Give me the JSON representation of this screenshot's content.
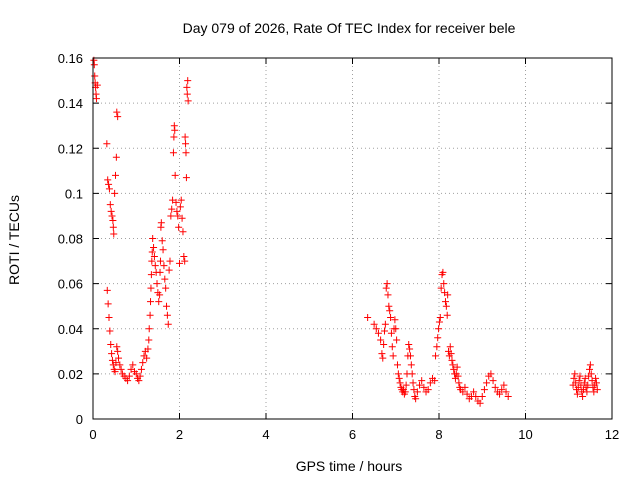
{
  "chart_data": {
    "type": "scatter",
    "title": "Day 079 of 2026, Rate Of TEC Index for receiver bele",
    "xlabel": "GPS time / hours",
    "ylabel": "ROTI / TECUs",
    "xlim": [
      0,
      12
    ],
    "ylim": [
      0,
      0.16
    ],
    "xticks": [
      0,
      2,
      4,
      6,
      8,
      10,
      12
    ],
    "xtick_labels": [
      "0",
      "2",
      "4",
      "6",
      "8",
      "10",
      "12"
    ],
    "yticks": [
      0,
      0.02,
      0.04,
      0.06,
      0.08,
      0.1,
      0.12,
      0.14,
      0.16
    ],
    "ytick_labels": [
      "0",
      "0.02",
      "0.04",
      "0.06",
      "0.08",
      "0.1",
      "0.12",
      "0.14",
      "0.16"
    ],
    "grid": true,
    "marker": "plus",
    "color": "#ff0000",
    "points": [
      [
        0.02,
        0.159
      ],
      [
        0.03,
        0.157
      ],
      [
        0.04,
        0.152
      ],
      [
        0.05,
        0.149
      ],
      [
        0.06,
        0.147
      ],
      [
        0.07,
        0.144
      ],
      [
        0.08,
        0.142
      ],
      [
        0.1,
        0.148
      ],
      [
        0.32,
        0.122
      ],
      [
        0.34,
        0.106
      ],
      [
        0.36,
        0.104
      ],
      [
        0.38,
        0.102
      ],
      [
        0.4,
        0.095
      ],
      [
        0.42,
        0.092
      ],
      [
        0.44,
        0.09
      ],
      [
        0.46,
        0.088
      ],
      [
        0.47,
        0.085
      ],
      [
        0.48,
        0.082
      ],
      [
        0.5,
        0.1
      ],
      [
        0.52,
        0.108
      ],
      [
        0.54,
        0.116
      ],
      [
        0.55,
        0.136
      ],
      [
        0.57,
        0.134
      ],
      [
        0.33,
        0.057
      ],
      [
        0.35,
        0.051
      ],
      [
        0.37,
        0.045
      ],
      [
        0.39,
        0.039
      ],
      [
        0.41,
        0.033
      ],
      [
        0.43,
        0.029
      ],
      [
        0.45,
        0.026
      ],
      [
        0.47,
        0.024
      ],
      [
        0.49,
        0.022
      ],
      [
        0.51,
        0.021
      ],
      [
        0.53,
        0.025
      ],
      [
        0.55,
        0.032
      ],
      [
        0.57,
        0.03
      ],
      [
        0.59,
        0.027
      ],
      [
        0.62,
        0.024
      ],
      [
        0.65,
        0.022
      ],
      [
        0.68,
        0.02
      ],
      [
        0.72,
        0.019
      ],
      [
        0.76,
        0.018
      ],
      [
        0.8,
        0.017
      ],
      [
        0.84,
        0.019
      ],
      [
        0.88,
        0.022
      ],
      [
        0.92,
        0.024
      ],
      [
        0.96,
        0.021
      ],
      [
        1.0,
        0.02
      ],
      [
        1.03,
        0.018
      ],
      [
        1.06,
        0.017
      ],
      [
        1.09,
        0.019
      ],
      [
        1.12,
        0.022
      ],
      [
        1.15,
        0.025
      ],
      [
        1.18,
        0.028
      ],
      [
        1.21,
        0.03
      ],
      [
        1.24,
        0.027
      ],
      [
        1.27,
        0.031
      ],
      [
        1.29,
        0.035
      ],
      [
        1.3,
        0.04
      ],
      [
        1.32,
        0.046
      ],
      [
        1.33,
        0.052
      ],
      [
        1.34,
        0.058
      ],
      [
        1.35,
        0.064
      ],
      [
        1.36,
        0.07
      ],
      [
        1.37,
        0.074
      ],
      [
        1.38,
        0.08
      ],
      [
        1.4,
        0.076
      ],
      [
        1.42,
        0.072
      ],
      [
        1.44,
        0.068
      ],
      [
        1.46,
        0.065
      ],
      [
        1.48,
        0.06
      ],
      [
        1.5,
        0.056
      ],
      [
        1.52,
        0.052
      ],
      [
        1.54,
        0.055
      ],
      [
        1.55,
        0.065
      ],
      [
        1.56,
        0.07
      ],
      [
        1.57,
        0.085
      ],
      [
        1.58,
        0.087
      ],
      [
        1.6,
        0.079
      ],
      [
        1.62,
        0.075
      ],
      [
        1.64,
        0.068
      ],
      [
        1.66,
        0.062
      ],
      [
        1.68,
        0.058
      ],
      [
        1.7,
        0.05
      ],
      [
        1.72,
        0.046
      ],
      [
        1.74,
        0.042
      ],
      [
        1.76,
        0.066
      ],
      [
        1.78,
        0.07
      ],
      [
        1.8,
        0.09
      ],
      [
        1.82,
        0.093
      ],
      [
        1.84,
        0.097
      ],
      [
        1.86,
        0.118
      ],
      [
        1.87,
        0.125
      ],
      [
        1.88,
        0.13
      ],
      [
        1.89,
        0.128
      ],
      [
        1.9,
        0.108
      ],
      [
        1.92,
        0.096
      ],
      [
        1.94,
        0.092
      ],
      [
        1.96,
        0.09
      ],
      [
        1.98,
        0.085
      ],
      [
        2.0,
        0.069
      ],
      [
        2.02,
        0.094
      ],
      [
        2.04,
        0.097
      ],
      [
        2.06,
        0.089
      ],
      [
        2.08,
        0.083
      ],
      [
        2.1,
        0.072
      ],
      [
        2.12,
        0.07
      ],
      [
        2.13,
        0.125
      ],
      [
        2.14,
        0.122
      ],
      [
        2.15,
        0.118
      ],
      [
        2.16,
        0.107
      ],
      [
        2.17,
        0.147
      ],
      [
        2.18,
        0.144
      ],
      [
        2.19,
        0.15
      ],
      [
        2.2,
        0.141
      ],
      [
        6.35,
        0.045
      ],
      [
        6.5,
        0.042
      ],
      [
        6.55,
        0.04
      ],
      [
        6.6,
        0.038
      ],
      [
        6.65,
        0.035
      ],
      [
        6.68,
        0.029
      ],
      [
        6.7,
        0.027
      ],
      [
        6.72,
        0.033
      ],
      [
        6.74,
        0.039
      ],
      [
        6.76,
        0.042
      ],
      [
        6.78,
        0.058
      ],
      [
        6.8,
        0.06
      ],
      [
        6.82,
        0.055
      ],
      [
        6.84,
        0.05
      ],
      [
        6.86,
        0.048
      ],
      [
        6.88,
        0.045
      ],
      [
        6.9,
        0.038
      ],
      [
        6.92,
        0.032
      ],
      [
        6.94,
        0.028
      ],
      [
        6.96,
        0.04
      ],
      [
        6.98,
        0.044
      ],
      [
        7.0,
        0.04
      ],
      [
        7.02,
        0.035
      ],
      [
        7.04,
        0.024
      ],
      [
        7.06,
        0.02
      ],
      [
        7.08,
        0.018
      ],
      [
        7.1,
        0.016
      ],
      [
        7.12,
        0.014
      ],
      [
        7.14,
        0.013
      ],
      [
        7.16,
        0.012
      ],
      [
        7.18,
        0.013
      ],
      [
        7.2,
        0.011
      ],
      [
        7.22,
        0.012
      ],
      [
        7.24,
        0.015
      ],
      [
        7.26,
        0.02
      ],
      [
        7.28,
        0.028
      ],
      [
        7.3,
        0.033
      ],
      [
        7.32,
        0.031
      ],
      [
        7.34,
        0.028
      ],
      [
        7.36,
        0.024
      ],
      [
        7.38,
        0.02
      ],
      [
        7.4,
        0.016
      ],
      [
        7.42,
        0.013
      ],
      [
        7.44,
        0.01
      ],
      [
        7.46,
        0.009
      ],
      [
        7.5,
        0.012
      ],
      [
        7.55,
        0.015
      ],
      [
        7.6,
        0.017
      ],
      [
        7.65,
        0.014
      ],
      [
        7.7,
        0.012
      ],
      [
        7.75,
        0.013
      ],
      [
        7.8,
        0.016
      ],
      [
        7.85,
        0.018
      ],
      [
        7.9,
        0.017
      ],
      [
        7.92,
        0.028
      ],
      [
        7.95,
        0.032
      ],
      [
        7.97,
        0.036
      ],
      [
        7.99,
        0.04
      ],
      [
        8.01,
        0.043
      ],
      [
        8.03,
        0.045
      ],
      [
        8.05,
        0.058
      ],
      [
        8.07,
        0.064
      ],
      [
        8.09,
        0.065
      ],
      [
        8.11,
        0.06
      ],
      [
        8.13,
        0.056
      ],
      [
        8.15,
        0.052
      ],
      [
        8.17,
        0.05
      ],
      [
        8.19,
        0.046
      ],
      [
        8.2,
        0.055
      ],
      [
        8.22,
        0.03
      ],
      [
        8.24,
        0.028
      ],
      [
        8.26,
        0.032
      ],
      [
        8.28,
        0.029
      ],
      [
        8.3,
        0.026
      ],
      [
        8.32,
        0.024
      ],
      [
        8.34,
        0.022
      ],
      [
        8.36,
        0.02
      ],
      [
        8.38,
        0.018
      ],
      [
        8.4,
        0.02
      ],
      [
        8.42,
        0.023
      ],
      [
        8.44,
        0.019
      ],
      [
        8.46,
        0.016
      ],
      [
        8.48,
        0.014
      ],
      [
        8.5,
        0.013
      ],
      [
        8.55,
        0.012
      ],
      [
        8.6,
        0.014
      ],
      [
        8.65,
        0.011
      ],
      [
        8.7,
        0.009
      ],
      [
        8.75,
        0.01
      ],
      [
        8.8,
        0.012
      ],
      [
        8.85,
        0.01
      ],
      [
        8.9,
        0.008
      ],
      [
        8.95,
        0.007
      ],
      [
        9.0,
        0.01
      ],
      [
        9.05,
        0.013
      ],
      [
        9.1,
        0.016
      ],
      [
        9.15,
        0.019
      ],
      [
        9.2,
        0.02
      ],
      [
        9.25,
        0.017
      ],
      [
        9.3,
        0.014
      ],
      [
        9.35,
        0.012
      ],
      [
        9.4,
        0.011
      ],
      [
        9.45,
        0.013
      ],
      [
        9.5,
        0.015
      ],
      [
        9.55,
        0.012
      ],
      [
        9.6,
        0.01
      ],
      [
        11.1,
        0.015
      ],
      [
        11.12,
        0.018
      ],
      [
        11.14,
        0.02
      ],
      [
        11.16,
        0.016
      ],
      [
        11.18,
        0.013
      ],
      [
        11.2,
        0.011
      ],
      [
        11.22,
        0.014
      ],
      [
        11.24,
        0.017
      ],
      [
        11.26,
        0.019
      ],
      [
        11.28,
        0.015
      ],
      [
        11.3,
        0.012
      ],
      [
        11.32,
        0.01
      ],
      [
        11.34,
        0.013
      ],
      [
        11.36,
        0.016
      ],
      [
        11.38,
        0.018
      ],
      [
        11.4,
        0.014
      ],
      [
        11.42,
        0.012
      ],
      [
        11.44,
        0.015
      ],
      [
        11.46,
        0.019
      ],
      [
        11.48,
        0.022
      ],
      [
        11.5,
        0.024
      ],
      [
        11.52,
        0.02
      ],
      [
        11.54,
        0.017
      ],
      [
        11.56,
        0.014
      ],
      [
        11.58,
        0.012
      ],
      [
        11.6,
        0.015
      ],
      [
        11.62,
        0.018
      ],
      [
        11.64,
        0.016
      ],
      [
        11.66,
        0.013
      ]
    ]
  }
}
